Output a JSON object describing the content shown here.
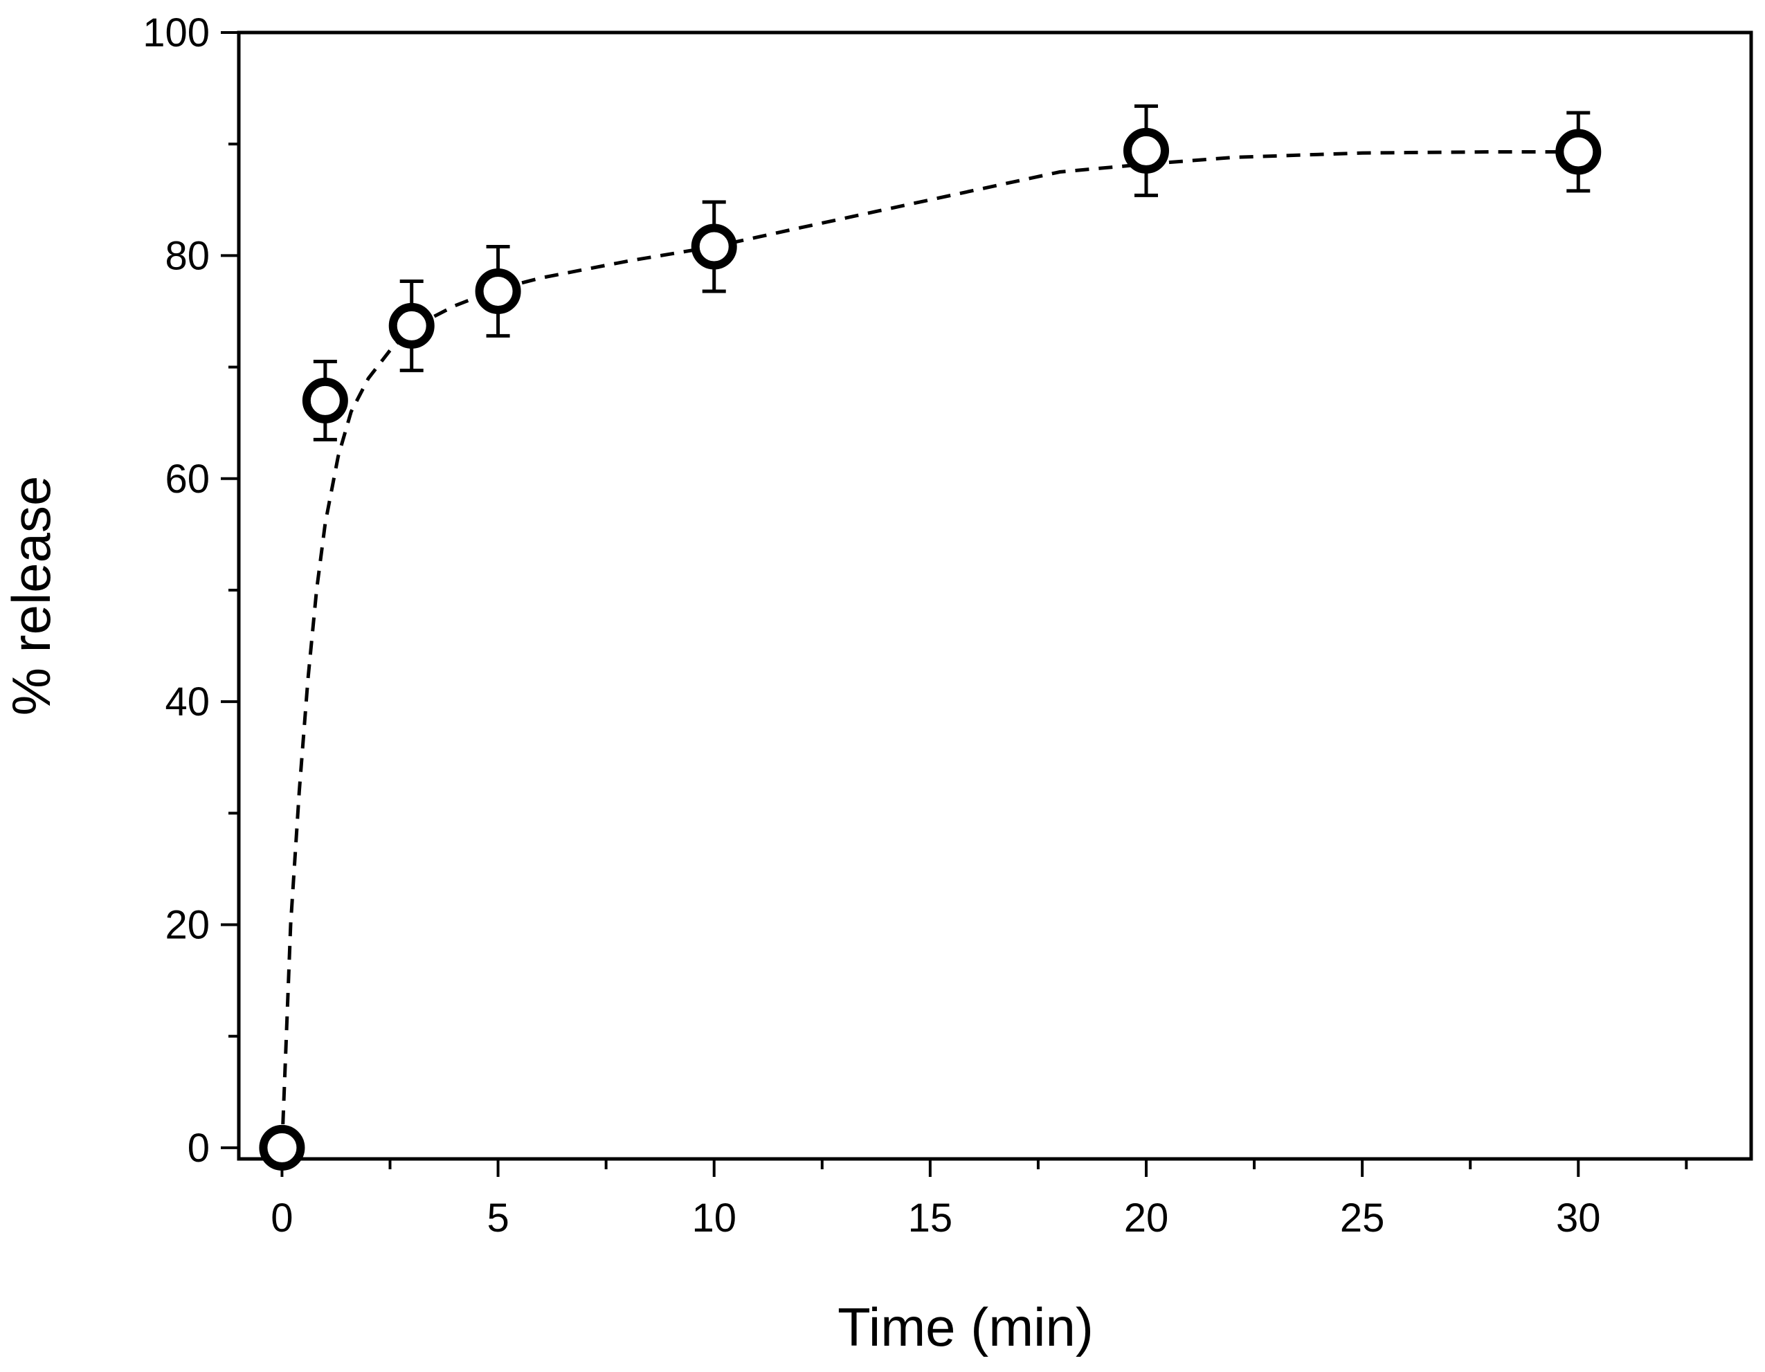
{
  "chart_data": {
    "type": "scatter",
    "title": "",
    "xlabel": "Time (min)",
    "ylabel": "% release",
    "xlim": [
      -1,
      34
    ],
    "ylim": [
      -1,
      100
    ],
    "grid": false,
    "x_ticks": [
      0,
      5,
      10,
      15,
      20,
      25,
      30
    ],
    "x_minor_ticks": [
      2.5,
      7.5,
      12.5,
      17.5,
      22.5,
      27.5,
      32.5
    ],
    "y_ticks": [
      0,
      20,
      40,
      60,
      80,
      100
    ],
    "y_minor_ticks": [
      10,
      30,
      50,
      70,
      90
    ],
    "series": [
      {
        "name": "% release",
        "marker": "open-circle",
        "x": [
          0,
          1,
          3,
          5,
          10,
          20,
          30
        ],
        "y": [
          0,
          67,
          73.7,
          76.8,
          80.8,
          89.4,
          89.3
        ],
        "error": [
          0,
          3.5,
          4.0,
          4.0,
          4.0,
          4.0,
          3.5
        ]
      }
    ],
    "fit_line": {
      "style": "dashed",
      "x": [
        0,
        0.1,
        0.2,
        0.4,
        0.6,
        0.8,
        1.0,
        1.3,
        1.6,
        2.0,
        2.5,
        3,
        4,
        5,
        6,
        8,
        10,
        12,
        15,
        18,
        20,
        22,
        25,
        28,
        30
      ],
      "y": [
        0,
        10,
        20,
        32,
        42,
        50,
        56,
        62,
        66,
        69,
        71.5,
        73.5,
        75.5,
        77,
        78,
        79.5,
        80.8,
        82.5,
        85,
        87.5,
        88.2,
        88.8,
        89.2,
        89.3,
        89.3
      ]
    },
    "colors": {
      "ink": "#000000",
      "marker_fill": "#ffffff"
    }
  }
}
